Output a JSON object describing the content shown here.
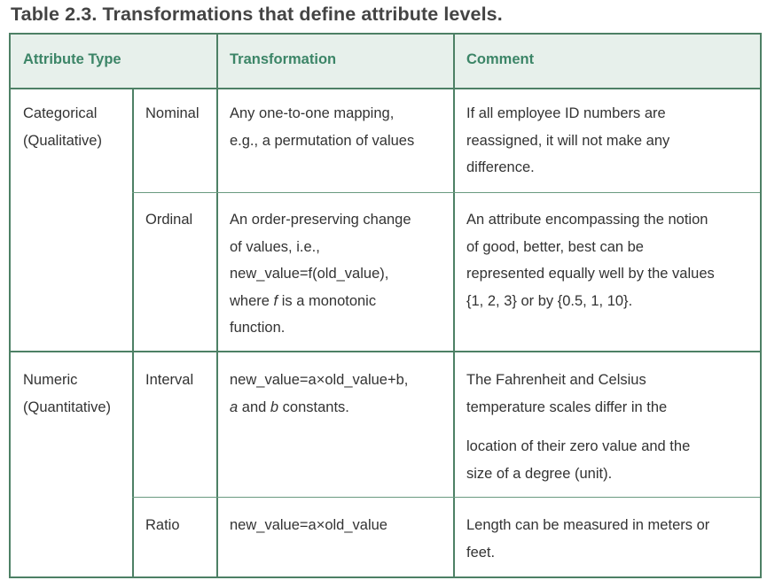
{
  "title": "Table 2.3. Transformations that define attribute levels.",
  "headers": {
    "attribute_type": "Attribute Type",
    "transformation": "Transformation",
    "comment": "Comment"
  },
  "groups": {
    "categorical": {
      "line1": "Categorical",
      "line2": "(Qualitative)"
    },
    "numeric": {
      "line1": "Numeric",
      "line2": "(Quantitative)"
    }
  },
  "rows": {
    "nominal": {
      "level": "Nominal",
      "transformation": [
        "Any one-to-one mapping,",
        "e.g., a permutation of values"
      ],
      "comment": [
        "If all employee ID numbers are",
        "reassigned, it will not make any",
        "difference."
      ]
    },
    "ordinal": {
      "level": "Ordinal",
      "transformation": [
        "An order-preserving change",
        "of values, i.e.,",
        "new_value=f(old_value),"
      ],
      "transformation_last_prefix": "where ",
      "transformation_last_italic": "f",
      "transformation_last_suffix": " is a monotonic",
      "transformation_end": "function.",
      "comment": [
        "An attribute encompassing the notion",
        "of good, better, best can be",
        "represented equally well by the values",
        "{1, 2, 3} or by {0.5, 1, 10}."
      ]
    },
    "interval": {
      "level": "Interval",
      "transformation_line1": "new_value=a×old_value+b,",
      "transformation_italic_a": "a",
      "transformation_and": " and ",
      "transformation_italic_b": "b",
      "transformation_suffix": " constants.",
      "comment": [
        "The Fahrenheit and Celsius",
        "temperature scales differ in the",
        "location of their zero value and the",
        "size of a degree (unit)."
      ]
    },
    "ratio": {
      "level": "Ratio",
      "transformation": "new_value=a×old_value",
      "comment": [
        "Length can be measured in meters or",
        "feet."
      ]
    }
  }
}
